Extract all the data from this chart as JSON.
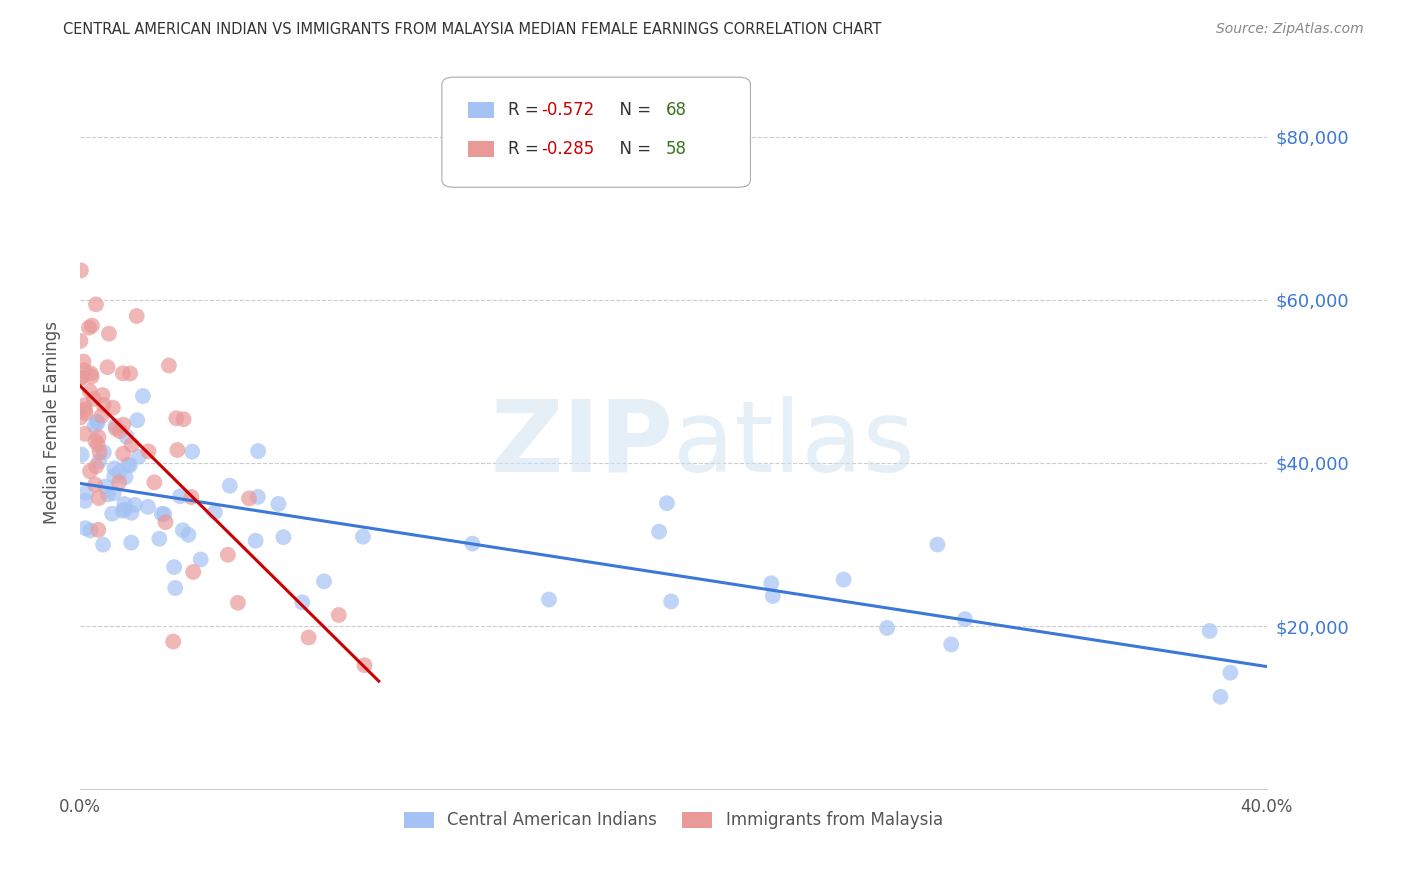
{
  "title": "CENTRAL AMERICAN INDIAN VS IMMIGRANTS FROM MALAYSIA MEDIAN FEMALE EARNINGS CORRELATION CHART",
  "source": "Source: ZipAtlas.com",
  "ylabel": "Median Female Earnings",
  "ytick_labels": [
    "$20,000",
    "$40,000",
    "$60,000",
    "$80,000"
  ],
  "ytick_values": [
    20000,
    40000,
    60000,
    80000
  ],
  "legend_blue_r": "-0.572",
  "legend_blue_n": "68",
  "legend_pink_r": "-0.285",
  "legend_pink_n": "58",
  "watermark_zip": "ZIP",
  "watermark_atlas": "atlas",
  "blue_color": "#a4c2f4",
  "pink_color": "#ea9999",
  "trend_blue": "#3c78d8",
  "trend_pink": "#cc0000",
  "trend_gray": "#cccccc",
  "blue_label": "Central American Indians",
  "pink_label": "Immigrants from Malaysia",
  "xmin": 0.0,
  "xmax": 40.0,
  "ymin": 0,
  "ymax": 90000,
  "bg_color": "#ffffff",
  "title_color": "#333333",
  "source_color": "#888888",
  "grid_color": "#cccccc",
  "right_ytick_color": "#3c78d8",
  "legend_r_color": "#cc0000",
  "legend_n_color": "#38761d"
}
